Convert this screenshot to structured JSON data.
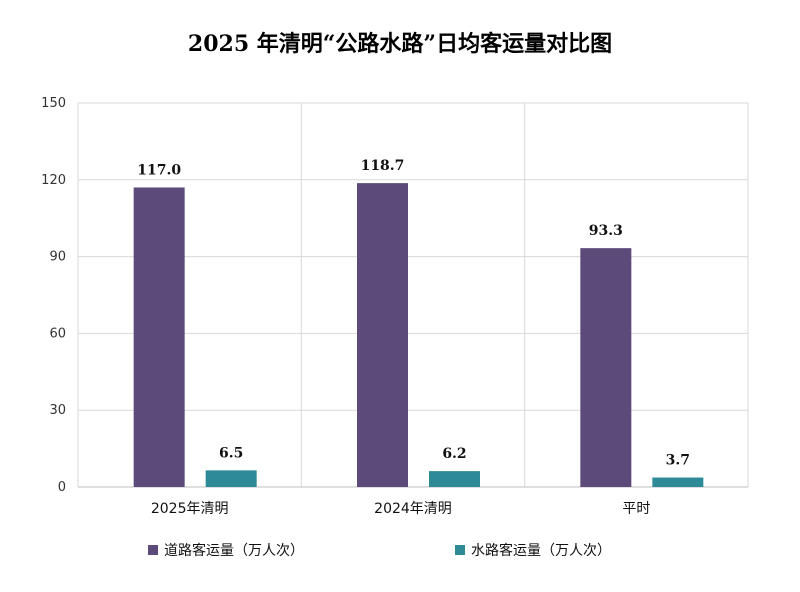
{
  "title": "2025 年清明“公路水路”日均客运量对比图",
  "colors": {
    "series1": "#5b4a7a",
    "series2": "#2e8a96",
    "grid": "#d9d9d9"
  },
  "chart_data": {
    "type": "bar",
    "title": "2025 年清明“公路水路”日均客运量对比图",
    "categories": [
      "2025年清明",
      "2024年清明",
      "平时"
    ],
    "series": [
      {
        "name": "道路客运量（万人次）",
        "values": [
          117.0,
          118.7,
          93.3
        ],
        "labels": [
          "117.0",
          "118.7",
          "93.3"
        ]
      },
      {
        "name": "水路客运量（万人次）",
        "values": [
          6.5,
          6.2,
          3.7
        ],
        "labels": [
          "6.5",
          "6.2",
          "3.7"
        ]
      }
    ],
    "ylim": [
      0,
      150
    ],
    "yticks": [
      0,
      30,
      60,
      90,
      120,
      150
    ],
    "xlabel": "",
    "ylabel": "",
    "grid": true,
    "legend_position": "bottom"
  }
}
